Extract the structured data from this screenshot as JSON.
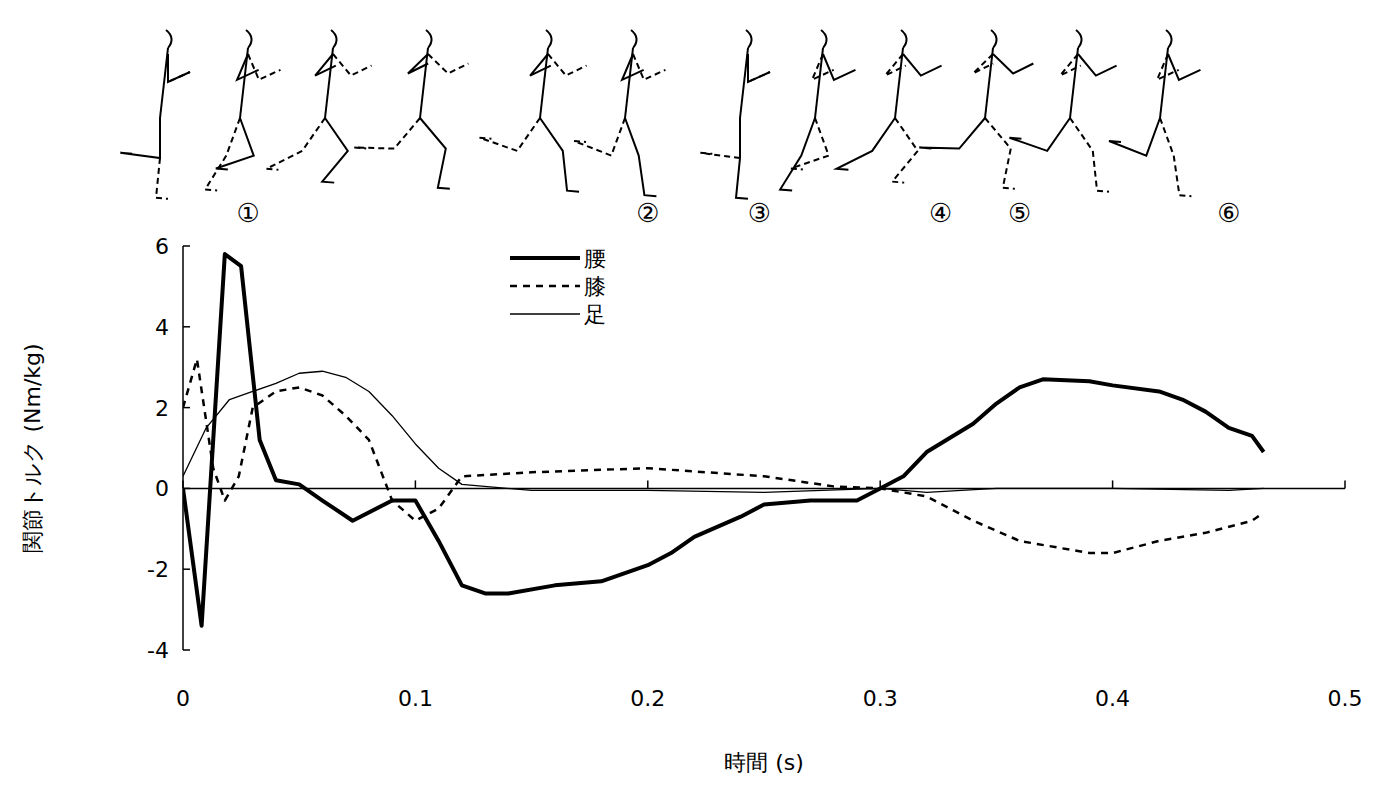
{
  "chart_data": {
    "type": "line",
    "x_label": "時間 (s)",
    "y_label": "関節トルク (Nm/kg)",
    "xlim": [
      0,
      0.5
    ],
    "ylim": [
      -4,
      6
    ],
    "xticks": [
      0,
      0.1,
      0.2,
      0.3,
      0.4,
      0.5
    ],
    "yticks": [
      -4,
      -2,
      0,
      2,
      4,
      6
    ],
    "grid": false,
    "legend": "upper center",
    "annotations": [
      {
        "text": "①",
        "x": 0.028
      },
      {
        "text": "②",
        "x": 0.2
      },
      {
        "text": "③",
        "x": 0.248
      },
      {
        "text": "④",
        "x": 0.326
      },
      {
        "text": "⑤",
        "x": 0.36
      },
      {
        "text": "⑥",
        "x": 0.45
      }
    ],
    "series": [
      {
        "name": "腰",
        "color": "#000000",
        "line_style": "solid",
        "x": [
          0,
          0.008,
          0.018,
          0.025,
          0.033,
          0.04,
          0.05,
          0.06,
          0.073,
          0.09,
          0.1,
          0.11,
          0.12,
          0.13,
          0.14,
          0.16,
          0.18,
          0.2,
          0.21,
          0.22,
          0.24,
          0.25,
          0.27,
          0.29,
          0.3,
          0.31,
          0.32,
          0.34,
          0.35,
          0.36,
          0.37,
          0.39,
          0.4,
          0.42,
          0.43,
          0.44,
          0.45,
          0.46,
          0.465
        ],
        "values": [
          0,
          -3.4,
          5.8,
          5.5,
          1.2,
          0.2,
          0.1,
          -0.3,
          -0.8,
          -0.3,
          -0.3,
          -1.3,
          -2.4,
          -2.6,
          -2.6,
          -2.4,
          -2.3,
          -1.9,
          -1.6,
          -1.2,
          -0.7,
          -0.4,
          -0.3,
          -0.3,
          0,
          0.3,
          0.9,
          1.6,
          2.1,
          2.5,
          2.7,
          2.65,
          2.55,
          2.4,
          2.2,
          1.9,
          1.5,
          1.3,
          0.9
        ]
      },
      {
        "name": "膝",
        "color": "#000000",
        "line_style": "dashed",
        "x": [
          0,
          0.006,
          0.013,
          0.018,
          0.024,
          0.03,
          0.04,
          0.05,
          0.06,
          0.07,
          0.08,
          0.09,
          0.1,
          0.11,
          0.12,
          0.15,
          0.2,
          0.25,
          0.28,
          0.3,
          0.32,
          0.34,
          0.36,
          0.39,
          0.4,
          0.42,
          0.44,
          0.46,
          0.465
        ],
        "values": [
          2.0,
          3.2,
          0.5,
          -0.3,
          0.3,
          2.0,
          2.4,
          2.5,
          2.3,
          1.8,
          1.2,
          -0.3,
          -0.8,
          -0.5,
          0.3,
          0.4,
          0.5,
          0.3,
          0.05,
          0,
          -0.2,
          -0.8,
          -1.3,
          -1.6,
          -1.6,
          -1.3,
          -1.1,
          -0.8,
          -0.6
        ]
      },
      {
        "name": "足",
        "color": "#000000",
        "line_style": "solid",
        "x": [
          0,
          0.01,
          0.02,
          0.03,
          0.04,
          0.05,
          0.06,
          0.07,
          0.08,
          0.09,
          0.1,
          0.11,
          0.12,
          0.15,
          0.2,
          0.25,
          0.3,
          0.32,
          0.35,
          0.4,
          0.45,
          0.465
        ],
        "values": [
          0.3,
          1.5,
          2.2,
          2.4,
          2.6,
          2.85,
          2.9,
          2.75,
          2.4,
          1.8,
          1.1,
          0.5,
          0.1,
          -0.05,
          -0.05,
          -0.1,
          0,
          -0.1,
          0,
          0,
          -0.05,
          0
        ]
      }
    ]
  }
}
